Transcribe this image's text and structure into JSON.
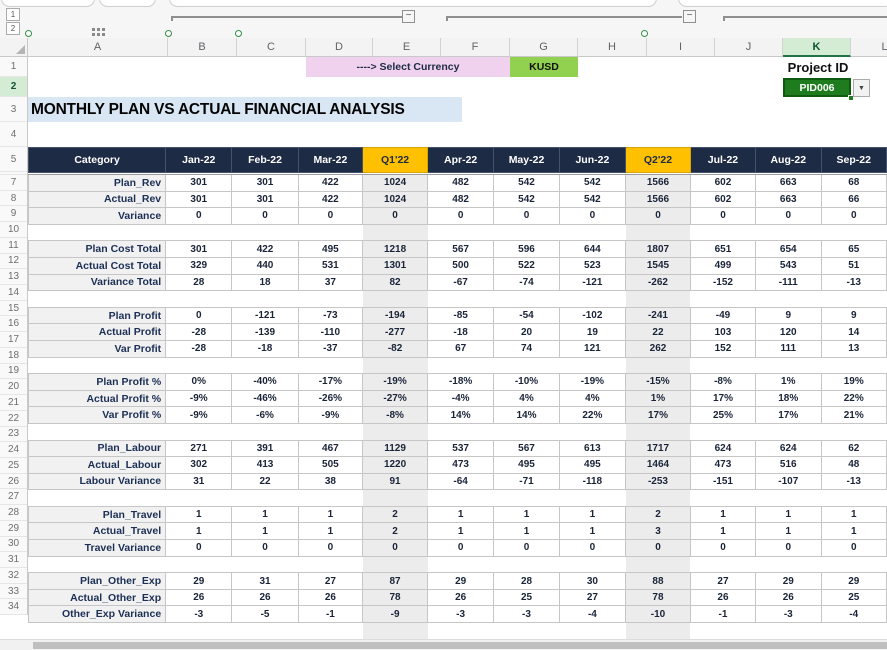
{
  "outline": {
    "level1": "1",
    "level2": "2",
    "collapse_glyph": "−"
  },
  "controls": {
    "currency_label": "----> Select Currency",
    "currency_value": "KUSD",
    "project_label": "Project ID",
    "project_value": "PID006",
    "dropdown_glyph": "▼"
  },
  "title": "MONTHLY PLAN VS ACTUAL FINANCIAL ANALYSIS",
  "sheet": {
    "column_letters": [
      "A",
      "B",
      "C",
      "D",
      "E",
      "F",
      "G",
      "H",
      "I",
      "J",
      "K",
      "L"
    ],
    "selected_column": "K",
    "selected_row": "2",
    "hidden_row": "6",
    "top_row_numbers": [
      "1",
      "2",
      "3",
      "4",
      "5"
    ],
    "data_row_numbers": [
      "7",
      "8",
      "9",
      "10",
      "11",
      "12",
      "13",
      "14",
      "15",
      "16",
      "17",
      "18",
      "19",
      "20",
      "21",
      "22",
      "23",
      "24",
      "25",
      "26",
      "27",
      "28",
      "29",
      "30",
      "31",
      "32",
      "33",
      "34"
    ]
  },
  "table": {
    "category_header": "Category",
    "columns": [
      "Jan-22",
      "Feb-22",
      "Mar-22",
      "Q1'22",
      "Apr-22",
      "May-22",
      "Jun-22",
      "Q2'22",
      "Jul-22",
      "Aug-22",
      "Sep-22"
    ],
    "quarter_col_indexes": [
      3,
      7
    ],
    "rows": [
      {
        "row": "7",
        "label": "Plan_Rev",
        "values": [
          "301",
          "301",
          "422",
          "1024",
          "482",
          "542",
          "542",
          "1566",
          "602",
          "663",
          "68"
        ]
      },
      {
        "row": "8",
        "label": "Actual_Rev",
        "values": [
          "301",
          "301",
          "422",
          "1024",
          "482",
          "542",
          "542",
          "1566",
          "602",
          "663",
          "66"
        ]
      },
      {
        "row": "9",
        "label": "Variance",
        "values": [
          "0",
          "0",
          "0",
          "0",
          "0",
          "0",
          "0",
          "0",
          "0",
          "0",
          "0"
        ]
      },
      {
        "row": "10",
        "label": "",
        "values": []
      },
      {
        "row": "11",
        "label": "Plan Cost Total",
        "values": [
          "301",
          "422",
          "495",
          "1218",
          "567",
          "596",
          "644",
          "1807",
          "651",
          "654",
          "65"
        ]
      },
      {
        "row": "12",
        "label": "Actual Cost Total",
        "values": [
          "329",
          "440",
          "531",
          "1301",
          "500",
          "522",
          "523",
          "1545",
          "499",
          "543",
          "51"
        ]
      },
      {
        "row": "13",
        "label": "Variance Total",
        "values": [
          "28",
          "18",
          "37",
          "82",
          "-67",
          "-74",
          "-121",
          "-262",
          "-152",
          "-111",
          "-13"
        ]
      },
      {
        "row": "14",
        "label": "",
        "values": []
      },
      {
        "row": "15",
        "label": "Plan Profit",
        "values": [
          "0",
          "-121",
          "-73",
          "-194",
          "-85",
          "-54",
          "-102",
          "-241",
          "-49",
          "9",
          "9"
        ]
      },
      {
        "row": "16",
        "label": "Actual Profit",
        "values": [
          "-28",
          "-139",
          "-110",
          "-277",
          "-18",
          "20",
          "19",
          "22",
          "103",
          "120",
          "14"
        ]
      },
      {
        "row": "17",
        "label": "Var Profit",
        "values": [
          "-28",
          "-18",
          "-37",
          "-82",
          "67",
          "74",
          "121",
          "262",
          "152",
          "111",
          "13"
        ]
      },
      {
        "row": "18",
        "label": "",
        "values": []
      },
      {
        "row": "19",
        "label": "Plan Profit %",
        "values": [
          "0%",
          "-40%",
          "-17%",
          "-19%",
          "-18%",
          "-10%",
          "-19%",
          "-15%",
          "-8%",
          "1%",
          "19%"
        ]
      },
      {
        "row": "20",
        "label": "Actual Profit %",
        "values": [
          "-9%",
          "-46%",
          "-26%",
          "-27%",
          "-4%",
          "4%",
          "4%",
          "1%",
          "17%",
          "18%",
          "22%"
        ]
      },
      {
        "row": "21",
        "label": "Var Profit %",
        "values": [
          "-9%",
          "-6%",
          "-9%",
          "-8%",
          "14%",
          "14%",
          "22%",
          "17%",
          "25%",
          "17%",
          "21%"
        ]
      },
      {
        "row": "22",
        "label": "",
        "values": []
      },
      {
        "row": "23",
        "label": "Plan_Labour",
        "values": [
          "271",
          "391",
          "467",
          "1129",
          "537",
          "567",
          "613",
          "1717",
          "624",
          "624",
          "62"
        ]
      },
      {
        "row": "24",
        "label": "Actual_Labour",
        "values": [
          "302",
          "413",
          "505",
          "1220",
          "473",
          "495",
          "495",
          "1464",
          "473",
          "516",
          "48"
        ]
      },
      {
        "row": "25",
        "label": "Labour Variance",
        "values": [
          "31",
          "22",
          "38",
          "91",
          "-64",
          "-71",
          "-118",
          "-253",
          "-151",
          "-107",
          "-13"
        ]
      },
      {
        "row": "26",
        "label": "",
        "values": []
      },
      {
        "row": "27",
        "label": "Plan_Travel",
        "values": [
          "1",
          "1",
          "1",
          "2",
          "1",
          "1",
          "1",
          "2",
          "1",
          "1",
          "1"
        ]
      },
      {
        "row": "28",
        "label": "Actual_Travel",
        "values": [
          "1",
          "1",
          "1",
          "2",
          "1",
          "1",
          "1",
          "3",
          "1",
          "1",
          "1"
        ]
      },
      {
        "row": "29",
        "label": "Travel Variance",
        "values": [
          "0",
          "0",
          "0",
          "0",
          "0",
          "0",
          "0",
          "0",
          "0",
          "0",
          "0"
        ]
      },
      {
        "row": "30",
        "label": "",
        "values": []
      },
      {
        "row": "31",
        "label": "Plan_Other_Exp",
        "values": [
          "29",
          "31",
          "27",
          "87",
          "29",
          "28",
          "30",
          "88",
          "27",
          "29",
          "29"
        ]
      },
      {
        "row": "32",
        "label": "Actual_Other_Exp",
        "values": [
          "26",
          "26",
          "26",
          "78",
          "26",
          "25",
          "27",
          "78",
          "26",
          "26",
          "25"
        ]
      },
      {
        "row": "33",
        "label": "Other_Exp Variance",
        "values": [
          "-3",
          "-5",
          "-1",
          "-9",
          "-3",
          "-3",
          "-4",
          "-10",
          "-1",
          "-3",
          "-4"
        ]
      },
      {
        "row": "34",
        "label": "",
        "values": []
      }
    ]
  },
  "colors": {
    "header_navy": "#1e2b44",
    "quarter_gold": "#ffc000",
    "quarter_col_gray": "#ececec",
    "currency_pink": "#f0d2ee",
    "currency_green": "#92d050",
    "project_green": "#1e7b1e",
    "title_blue": "#d9e7f5",
    "selected_header_green": "#d3ecd3"
  }
}
